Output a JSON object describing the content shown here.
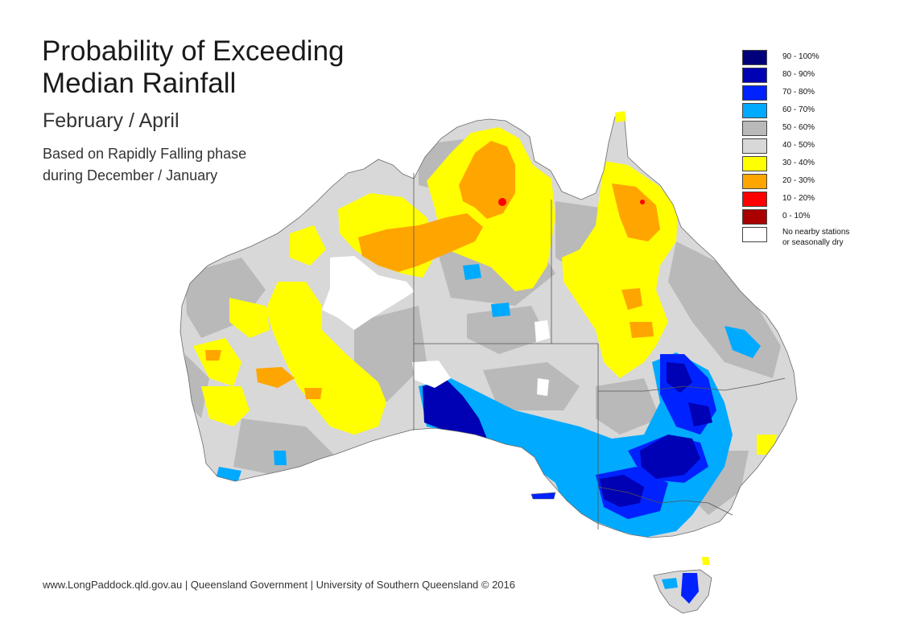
{
  "map": {
    "title_line1": "Probability of Exceeding",
    "title_line2": "Median Rainfall",
    "subtitle": "February / April",
    "description_line1": "Based on Rapidly Falling phase",
    "description_line2": "during December / January",
    "footer": "www.LongPaddock.qld.gov.au | Queensland Government | University of Southern Queensland © 2016",
    "region": "Australia"
  },
  "legend": {
    "items": [
      {
        "label": "90 - 100%",
        "color": "#00007a"
      },
      {
        "label": "80 - 90%",
        "color": "#0000b4"
      },
      {
        "label": "70 - 80%",
        "color": "#0022ff"
      },
      {
        "label": "60 - 70%",
        "color": "#00aaff"
      },
      {
        "label": "50 - 60%",
        "color": "#b9b9b9"
      },
      {
        "label": "40 - 50%",
        "color": "#d8d8d8"
      },
      {
        "label": "30 - 40%",
        "color": "#ffff00"
      },
      {
        "label": "20 - 30%",
        "color": "#ffa500"
      },
      {
        "label": "10 - 20%",
        "color": "#ff0000"
      },
      {
        "label": "0 - 10%",
        "color": "#aa0000"
      }
    ],
    "no_data_line1": "No nearby stations",
    "no_data_line2": "or seasonally dry",
    "no_data_color": "#ffffff"
  }
}
